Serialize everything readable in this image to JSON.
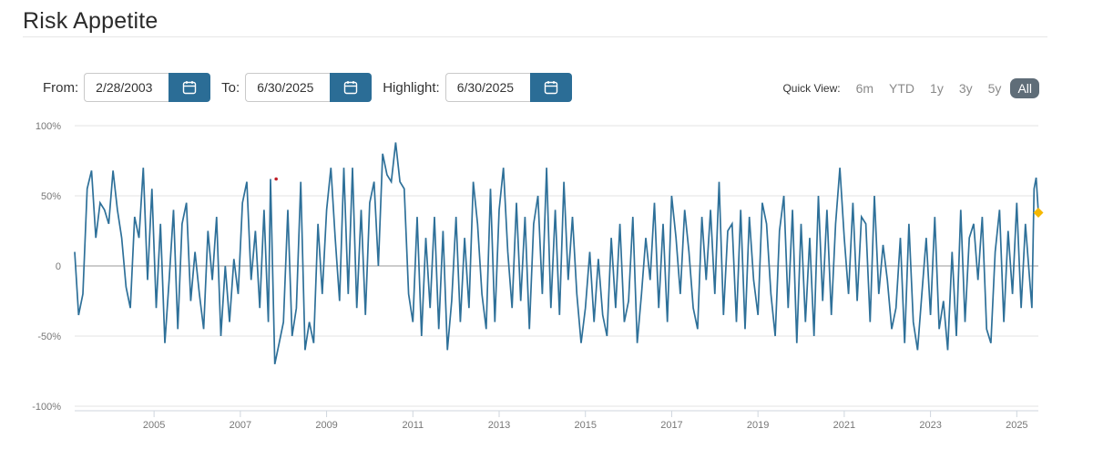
{
  "header": {
    "title": "Risk Appetite"
  },
  "filters": {
    "from_label": "From:",
    "from_value": "2/28/2003",
    "to_label": "To:",
    "to_value": "6/30/2025",
    "highlight_label": "Highlight:",
    "highlight_value": "6/30/2025"
  },
  "quick_view": {
    "label": "Quick View:",
    "options": [
      "6m",
      "YTD",
      "1y",
      "3y",
      "5y",
      "All"
    ],
    "selected": "All"
  },
  "colors": {
    "line": "#2e7099",
    "highlight": "#f5b800",
    "marker": "#c0202a",
    "button": "#2b6d96"
  },
  "chart_data": {
    "type": "line",
    "title": "Risk Appetite",
    "xlabel": "",
    "ylabel": "",
    "xlim": [
      2003.16,
      2025.5
    ],
    "ylim": [
      -100,
      100
    ],
    "y_ticks": [
      100,
      50,
      0,
      -50,
      -100
    ],
    "y_tick_labels": [
      "100%",
      "50%",
      "0",
      "-50%",
      "-100%"
    ],
    "x_ticks": [
      2005,
      2007,
      2009,
      2011,
      2013,
      2015,
      2017,
      2019,
      2021,
      2023,
      2025
    ],
    "x_tick_labels": [
      "2005",
      "2007",
      "2009",
      "2011",
      "2013",
      "2015",
      "2017",
      "2019",
      "2021",
      "2023",
      "2025"
    ],
    "series": [
      {
        "name": "Risk Appetite",
        "x": [
          2003.16,
          2003.25,
          2003.35,
          2003.45,
          2003.55,
          2003.65,
          2003.75,
          2003.85,
          2003.95,
          2004.05,
          2004.15,
          2004.25,
          2004.35,
          2004.45,
          2004.55,
          2004.65,
          2004.75,
          2004.85,
          2004.95,
          2005.05,
          2005.15,
          2005.25,
          2005.35,
          2005.45,
          2005.55,
          2005.65,
          2005.75,
          2005.85,
          2005.95,
          2006.05,
          2006.15,
          2006.25,
          2006.35,
          2006.45,
          2006.55,
          2006.65,
          2006.75,
          2006.85,
          2006.95,
          2007.05,
          2007.15,
          2007.25,
          2007.35,
          2007.45,
          2007.55,
          2007.65,
          2007.7,
          2007.8,
          2007.9,
          2008.0,
          2008.1,
          2008.2,
          2008.3,
          2008.4,
          2008.5,
          2008.6,
          2008.7,
          2008.8,
          2008.9,
          2009.0,
          2009.1,
          2009.2,
          2009.3,
          2009.4,
          2009.5,
          2009.6,
          2009.7,
          2009.8,
          2009.9,
          2010.0,
          2010.1,
          2010.2,
          2010.3,
          2010.4,
          2010.5,
          2010.6,
          2010.7,
          2010.8,
          2010.9,
          2011.0,
          2011.1,
          2011.2,
          2011.3,
          2011.4,
          2011.5,
          2011.6,
          2011.7,
          2011.8,
          2011.9,
          2012.0,
          2012.1,
          2012.2,
          2012.3,
          2012.4,
          2012.5,
          2012.6,
          2012.7,
          2012.8,
          2012.9,
          2013.0,
          2013.1,
          2013.2,
          2013.3,
          2013.4,
          2013.5,
          2013.6,
          2013.7,
          2013.8,
          2013.9,
          2014.0,
          2014.1,
          2014.2,
          2014.3,
          2014.4,
          2014.5,
          2014.6,
          2014.7,
          2014.8,
          2014.9,
          2015.0,
          2015.1,
          2015.2,
          2015.3,
          2015.4,
          2015.5,
          2015.6,
          2015.7,
          2015.8,
          2015.9,
          2016.0,
          2016.1,
          2016.2,
          2016.3,
          2016.4,
          2016.5,
          2016.6,
          2016.7,
          2016.8,
          2016.9,
          2017.0,
          2017.1,
          2017.2,
          2017.3,
          2017.4,
          2017.5,
          2017.6,
          2017.7,
          2017.8,
          2017.9,
          2018.0,
          2018.1,
          2018.2,
          2018.3,
          2018.4,
          2018.5,
          2018.6,
          2018.7,
          2018.8,
          2018.9,
          2019.0,
          2019.1,
          2019.2,
          2019.3,
          2019.4,
          2019.5,
          2019.6,
          2019.7,
          2019.8,
          2019.9,
          2020.0,
          2020.1,
          2020.2,
          2020.3,
          2020.4,
          2020.5,
          2020.6,
          2020.7,
          2020.8,
          2020.9,
          2021.0,
          2021.1,
          2021.2,
          2021.3,
          2021.4,
          2021.5,
          2021.6,
          2021.7,
          2021.8,
          2021.9,
          2022.0,
          2022.1,
          2022.2,
          2022.3,
          2022.4,
          2022.5,
          2022.6,
          2022.7,
          2022.8,
          2022.9,
          2023.0,
          2023.1,
          2023.2,
          2023.3,
          2023.4,
          2023.5,
          2023.6,
          2023.7,
          2023.8,
          2023.9,
          2024.0,
          2024.1,
          2024.2,
          2024.3,
          2024.4,
          2024.5,
          2024.6,
          2024.7,
          2024.8,
          2024.9,
          2025.0,
          2025.1,
          2025.2,
          2025.3,
          2025.35,
          2025.4,
          2025.45,
          2025.5
        ],
        "values": [
          10,
          -35,
          -20,
          55,
          68,
          20,
          45,
          40,
          30,
          68,
          40,
          20,
          -15,
          -30,
          35,
          20,
          70,
          -10,
          55,
          -30,
          30,
          -55,
          -10,
          40,
          -45,
          30,
          45,
          -25,
          10,
          -20,
          -45,
          25,
          -10,
          35,
          -50,
          0,
          -40,
          5,
          -20,
          45,
          60,
          -10,
          25,
          -30,
          40,
          -40,
          62,
          -70,
          -55,
          -40,
          40,
          -50,
          -30,
          60,
          -60,
          -40,
          -55,
          30,
          -20,
          40,
          70,
          20,
          -25,
          70,
          -20,
          70,
          -30,
          40,
          -35,
          45,
          60,
          0,
          80,
          65,
          60,
          88,
          60,
          55,
          -20,
          -40,
          35,
          -50,
          20,
          -30,
          35,
          -45,
          25,
          -60,
          -25,
          35,
          -40,
          20,
          -30,
          60,
          30,
          -20,
          -45,
          55,
          -40,
          40,
          70,
          10,
          -30,
          45,
          -25,
          35,
          -45,
          30,
          50,
          -20,
          70,
          -30,
          40,
          -35,
          60,
          -10,
          35,
          -20,
          -55,
          -30,
          10,
          -40,
          5,
          -35,
          -50,
          20,
          -30,
          30,
          -40,
          -25,
          35,
          -55,
          -20,
          20,
          -10,
          45,
          -30,
          30,
          -40,
          50,
          20,
          -20,
          40,
          10,
          -30,
          -45,
          35,
          -10,
          40,
          -20,
          60,
          -35,
          25,
          30,
          -40,
          40,
          -45,
          35,
          -10,
          -35,
          45,
          30,
          -20,
          -50,
          25,
          50,
          -30,
          40,
          -55,
          30,
          -40,
          20,
          -50,
          50,
          -25,
          40,
          -35,
          30,
          70,
          20,
          -20,
          45,
          -25,
          35,
          30,
          -40,
          50,
          -20,
          15,
          -10,
          -45,
          -30,
          20,
          -55,
          30,
          -40,
          -60,
          -20,
          20,
          -35,
          35,
          -45,
          -25,
          -60,
          10,
          -50,
          40,
          -40,
          20,
          30,
          -10,
          35,
          -45,
          -55,
          10,
          40,
          -40,
          25,
          -20,
          45,
          -30,
          30,
          -10,
          -30,
          55,
          63,
          38
        ]
      }
    ],
    "annotations": [
      {
        "label": "highlight",
        "x": 2025.5,
        "y": 38
      },
      {
        "label": "marker",
        "x": 2007.83,
        "y": 62
      }
    ]
  }
}
